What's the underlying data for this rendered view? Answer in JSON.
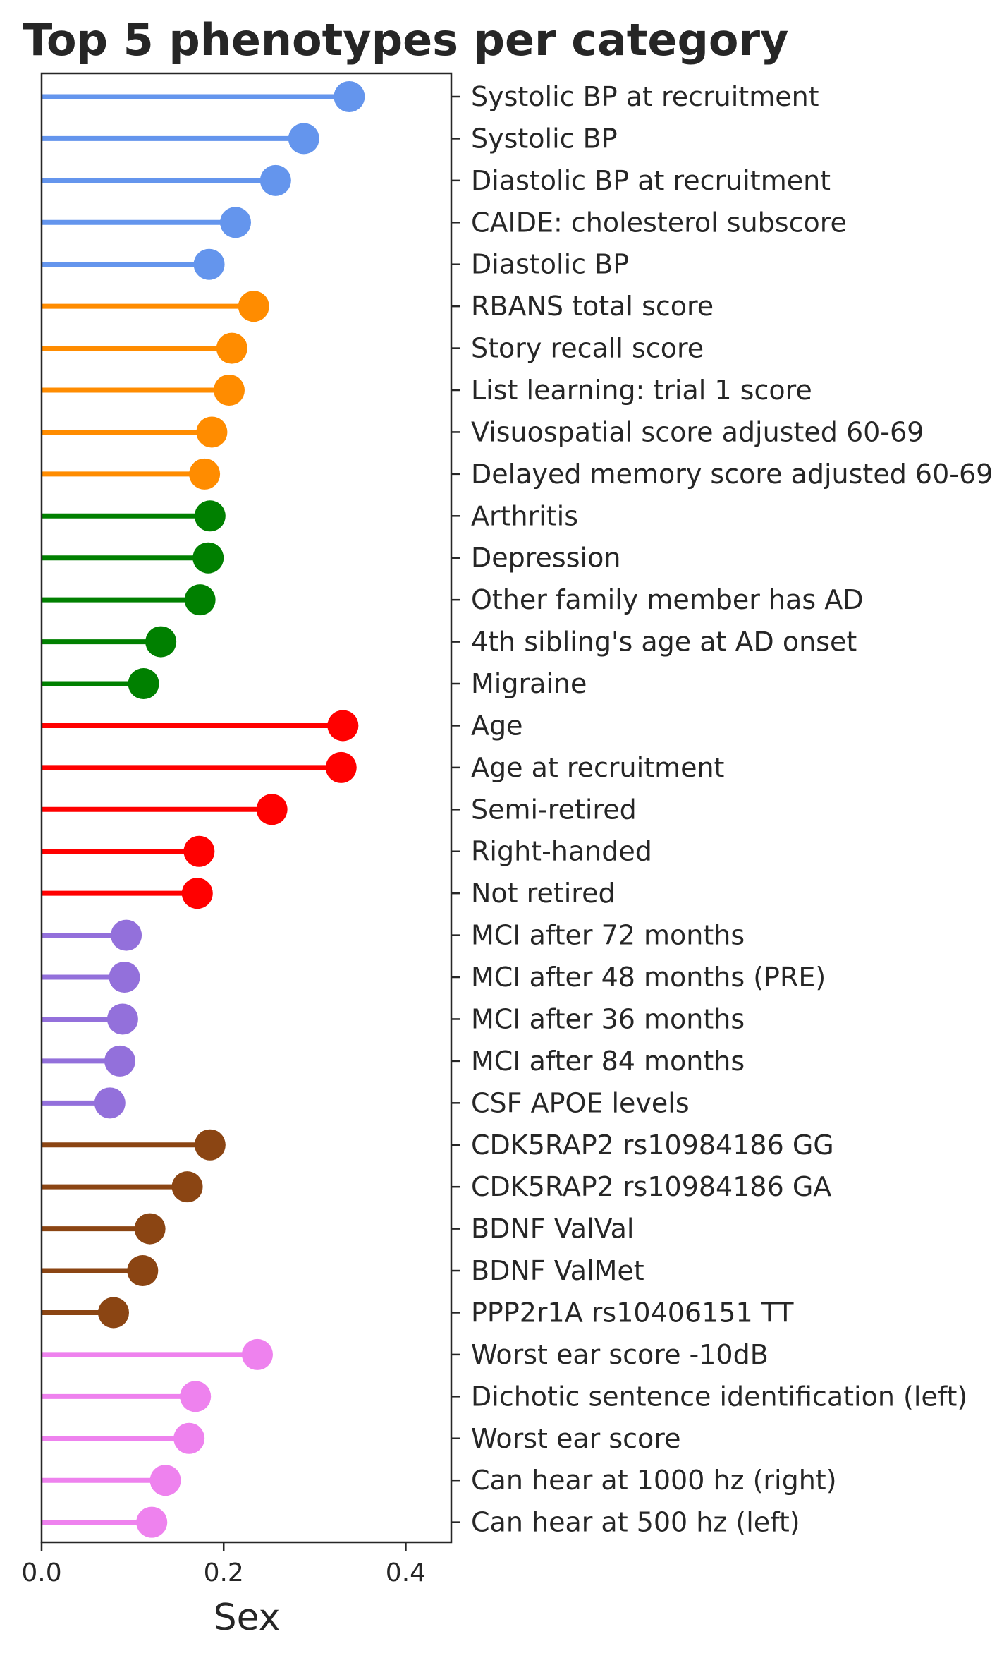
{
  "chart_data": {
    "type": "lollipop",
    "title": "Top 5 phenotypes per category",
    "xlabel": "Sex",
    "xlim": [
      0,
      0.45
    ],
    "xticks": [
      0.0,
      0.2,
      0.4
    ],
    "xtick_labels": [
      "0.0",
      "0.2",
      "0.4"
    ],
    "orientation": "horizontal",
    "label_side": "right",
    "grid": false,
    "groups": [
      {
        "color": "#6495ED",
        "items": [
          {
            "label": "Systolic BP at recruitment",
            "value": 0.338
          },
          {
            "label": "Systolic BP",
            "value": 0.288
          },
          {
            "label": "Diastolic BP at recruitment",
            "value": 0.257
          },
          {
            "label": "CAIDE: cholesterol subscore",
            "value": 0.213
          },
          {
            "label": "Diastolic BP",
            "value": 0.184
          }
        ]
      },
      {
        "color": "#FF8C00",
        "items": [
          {
            "label": "RBANS total score",
            "value": 0.233
          },
          {
            "label": "Story recall score",
            "value": 0.209
          },
          {
            "label": "List learning: trial 1 score",
            "value": 0.206
          },
          {
            "label": "Visuospatial score adjusted 60-69",
            "value": 0.187
          },
          {
            "label": "Delayed memory score adjusted 60-69",
            "value": 0.179
          }
        ]
      },
      {
        "color": "#008000",
        "items": [
          {
            "label": "Arthritis",
            "value": 0.185
          },
          {
            "label": "Depression",
            "value": 0.183
          },
          {
            "label": "Other family member has AD",
            "value": 0.174
          },
          {
            "label": "4th sibling's age at AD onset",
            "value": 0.131
          },
          {
            "label": "Migraine",
            "value": 0.112
          }
        ]
      },
      {
        "color": "#FF0000",
        "items": [
          {
            "label": "Age",
            "value": 0.331
          },
          {
            "label": "Age at recruitment",
            "value": 0.329
          },
          {
            "label": "Semi-retired",
            "value": 0.253
          },
          {
            "label": "Right-handed",
            "value": 0.173
          },
          {
            "label": "Not retired",
            "value": 0.171
          }
        ]
      },
      {
        "color": "#9370DB",
        "items": [
          {
            "label": "MCI after 72 months",
            "value": 0.093
          },
          {
            "label": "MCI after 48 months (PRE)",
            "value": 0.091
          },
          {
            "label": "MCI after 36 months",
            "value": 0.089
          },
          {
            "label": "MCI after 84 months",
            "value": 0.086
          },
          {
            "label": "CSF APOE levels",
            "value": 0.075
          }
        ]
      },
      {
        "color": "#8B4513",
        "items": [
          {
            "label": "CDK5RAP2 rs10984186 GG",
            "value": 0.185
          },
          {
            "label": "CDK5RAP2 rs10984186 GA",
            "value": 0.16
          },
          {
            "label": "BDNF ValVal",
            "value": 0.119
          },
          {
            "label": "BDNF ValMet",
            "value": 0.111
          },
          {
            "label": "PPP2r1A rs10406151 TT",
            "value": 0.079
          }
        ]
      },
      {
        "color": "#EE82EE",
        "items": [
          {
            "label": "Worst ear score -10dB",
            "value": 0.237
          },
          {
            "label": "Dichotic sentence identification (left)",
            "value": 0.169
          },
          {
            "label": "Worst ear score",
            "value": 0.162
          },
          {
            "label": "Can hear at 1000 hz (right)",
            "value": 0.136
          },
          {
            "label": "Can hear at 500 hz (left)",
            "value": 0.121
          }
        ]
      }
    ]
  }
}
